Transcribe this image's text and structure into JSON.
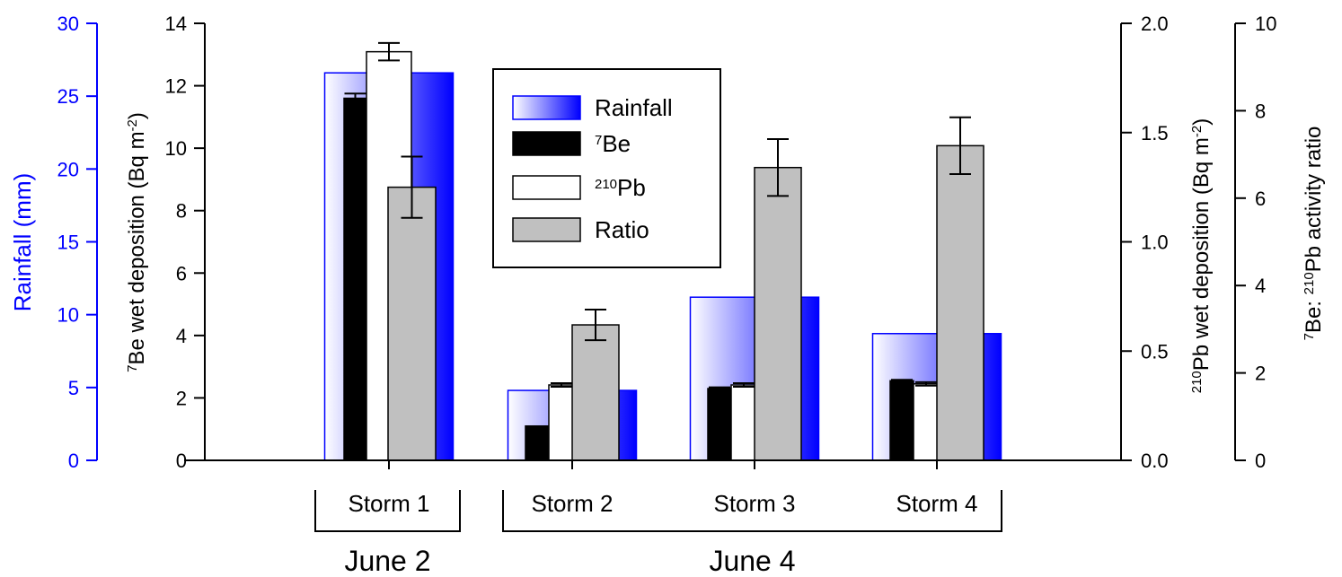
{
  "chart_data": {
    "type": "bar",
    "categories": [
      "Storm 1",
      "Storm 2",
      "Storm 3",
      "Storm 4"
    ],
    "groups": [
      {
        "label": "June 2",
        "categories": [
          "Storm 1"
        ]
      },
      {
        "label": "June 4",
        "categories": [
          "Storm 2",
          "Storm 3",
          "Storm 4"
        ]
      }
    ],
    "series": [
      {
        "name": "Rainfall",
        "axis": "rainfall",
        "values": [
          26.6,
          4.8,
          11.2,
          8.7
        ],
        "errors": null,
        "color_start": "#ffffff",
        "color_end": "#0000ff",
        "border": "#0000ff"
      },
      {
        "name": "7Be",
        "axis": "be7",
        "values": [
          11.6,
          1.1,
          2.3,
          2.55
        ],
        "errors": [
          0.15,
          0.0,
          0.04,
          0.03
        ],
        "color": "#000000"
      },
      {
        "name": "210Pb",
        "axis": "pb210",
        "values": [
          1.87,
          0.345,
          0.345,
          0.35
        ],
        "errors": [
          0.04,
          0.008,
          0.008,
          0.008
        ],
        "color": "#ffffff"
      },
      {
        "name": "Ratio",
        "axis": "ratio",
        "values": [
          6.25,
          3.1,
          6.7,
          7.2
        ],
        "errors": [
          0.7,
          0.35,
          0.65,
          0.65
        ],
        "color": "#c0c0c0"
      }
    ],
    "axes": {
      "rainfall": {
        "label": "Rainfall (mm)",
        "min": 0,
        "max": 30,
        "ticks": [
          "0",
          "5",
          "10",
          "15",
          "20",
          "25",
          "30"
        ],
        "color": "#0000ff"
      },
      "be7": {
        "label_sup": "7",
        "label": "Be wet deposition (Bq m",
        "label_exp": "-2",
        "label_end": ")",
        "min": 0,
        "max": 14,
        "ticks": [
          "0",
          "2",
          "4",
          "6",
          "8",
          "10",
          "12",
          "14"
        ]
      },
      "pb210": {
        "label_sup": "210",
        "label": "Pb wet deposition (Bq m",
        "label_exp": "-2",
        "label_end": ")",
        "min": 0,
        "max": 2,
        "ticks": [
          "0.0",
          "0.5",
          "1.0",
          "1.5",
          "2.0"
        ]
      },
      "ratio": {
        "label_sup1": "7",
        "label1": "Be: ",
        "label_sup2": "210",
        "label2": "Pb activity ratio",
        "min": 0,
        "max": 10,
        "ticks": [
          "0",
          "2",
          "4",
          "6",
          "8",
          "10"
        ]
      }
    },
    "legend": {
      "placement": "top-center",
      "entries": [
        {
          "series": "Rainfall",
          "text": "Rainfall"
        },
        {
          "series": "7Be",
          "sup": "7",
          "text": "Be"
        },
        {
          "series": "210Pb",
          "sup": "210",
          "text": "Pb"
        },
        {
          "series": "Ratio",
          "text": "Ratio"
        }
      ]
    },
    "grid": false
  }
}
